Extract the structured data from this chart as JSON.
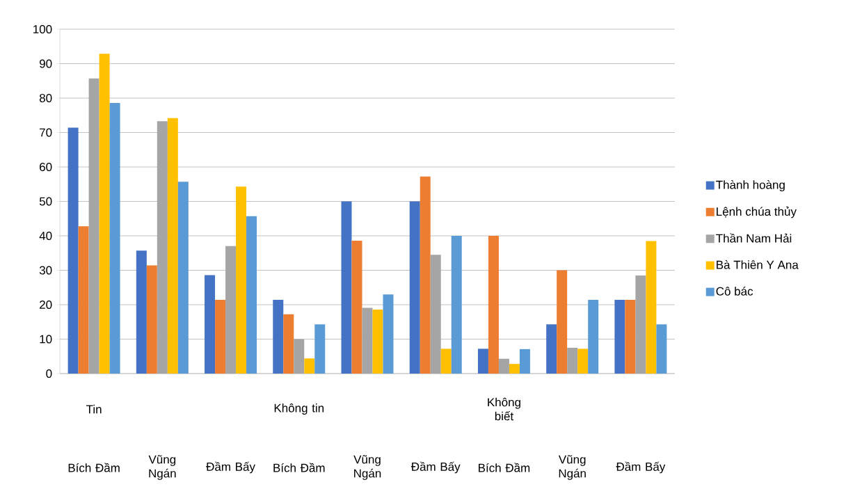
{
  "chart_data": {
    "type": "bar",
    "categories": [
      "Bích Đầm",
      "Vũng Ngán",
      "Đầm Bấy",
      "Bích Đầm",
      "Vũng Ngán",
      "Đầm Bấy",
      "Bích Đầm",
      "Vũng Ngán",
      "Đầm Bấy"
    ],
    "annotations": [
      "Tin",
      "Không tin",
      "Không biết"
    ],
    "series": [
      {
        "name": "Thành hoàng",
        "color": "#4472c4",
        "values": [
          71.4,
          35.7,
          28.6,
          21.4,
          50,
          50,
          7.2,
          14.3,
          21.4
        ]
      },
      {
        "name": "Lệnh chúa thủy",
        "color": "#ed7d31",
        "values": [
          42.8,
          31.4,
          21.4,
          17.2,
          38.6,
          57.2,
          40,
          30,
          21.4
        ]
      },
      {
        "name": "Thần Nam Hải",
        "color": "#a5a5a5",
        "values": [
          85.7,
          73.3,
          37.0,
          10,
          19.1,
          34.5,
          4.3,
          7.5,
          28.5
        ]
      },
      {
        "name": "Bà Thiên Y Ana",
        "color": "#ffc000",
        "values": [
          92.9,
          74.2,
          54.3,
          4.4,
          18.6,
          7.2,
          2.8,
          7.2,
          38.5
        ]
      },
      {
        "name": "Cô bác",
        "color": "#5b9bd5",
        "values": [
          78.6,
          55.7,
          45.7,
          14.3,
          23.0,
          40,
          7.1,
          21.4,
          14.3
        ]
      }
    ],
    "ylim": [
      0,
      100
    ],
    "yticks": [
      0,
      10,
      20,
      30,
      40,
      50,
      60,
      70,
      80,
      90,
      100
    ],
    "grid": "y",
    "legend": "right"
  }
}
